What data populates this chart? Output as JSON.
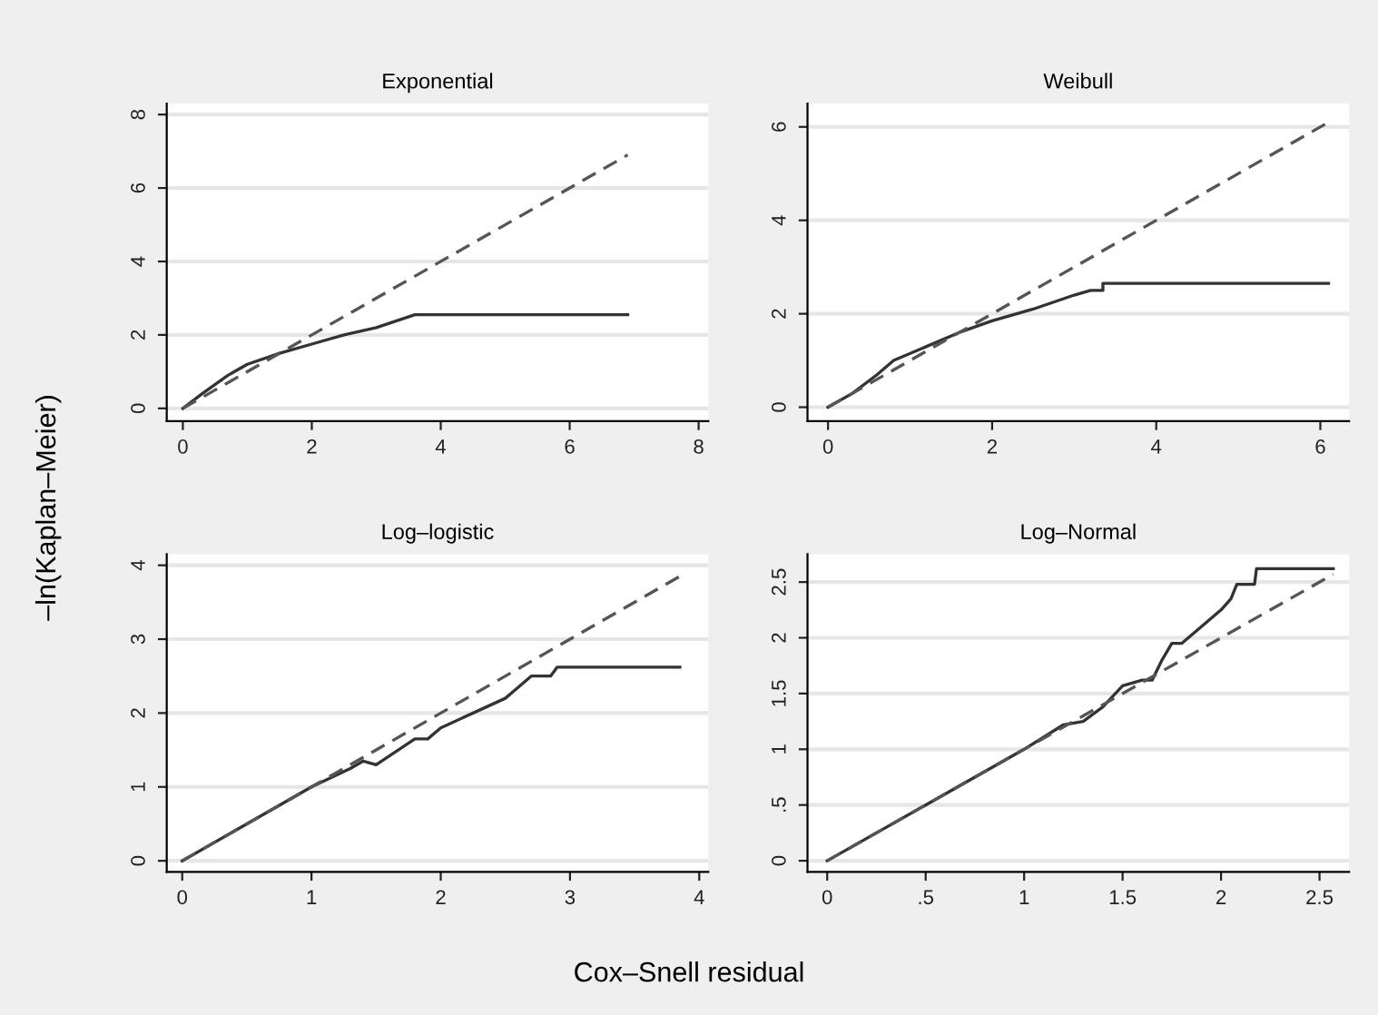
{
  "chart_data": [
    {
      "type": "line",
      "title": "Exponential",
      "ylabel": "–ln(Kaplan–Meier)",
      "xlim": [
        -0.25,
        8.15
      ],
      "ylim": [
        -0.35,
        8.3
      ],
      "xticks": [
        0,
        2,
        4,
        6,
        8
      ],
      "yticks": [
        0,
        2,
        4,
        6,
        8
      ],
      "grid": "y",
      "series": [
        {
          "color": "#333333",
          "line_style": "solid",
          "x": [
            0,
            0.3,
            0.7,
            1.0,
            1.5,
            2,
            2.5,
            3,
            3.6,
            6.9
          ],
          "values": [
            0,
            0.4,
            0.9,
            1.2,
            1.5,
            1.75,
            2.0,
            2.2,
            2.55,
            2.55
          ]
        },
        {
          "color": "#555555",
          "line_style": "dashed",
          "x": [
            0,
            6.9
          ],
          "values": [
            0,
            6.9
          ]
        }
      ]
    },
    {
      "type": "line",
      "title": "Weibull",
      "xlim": [
        -0.25,
        6.35
      ],
      "ylim": [
        -0.3,
        6.5
      ],
      "xticks": [
        0,
        2,
        4,
        6
      ],
      "yticks": [
        0,
        2,
        4,
        6
      ],
      "grid": "y",
      "series": [
        {
          "color": "#333333",
          "line_style": "solid",
          "x": [
            0,
            0.3,
            0.6,
            0.8,
            1.2,
            1.6,
            2.0,
            2.5,
            3.0,
            3.2,
            3.35,
            3.35,
            6.1
          ],
          "values": [
            0,
            0.3,
            0.7,
            1.0,
            1.3,
            1.6,
            1.85,
            2.1,
            2.4,
            2.5,
            2.5,
            2.65,
            2.65
          ]
        },
        {
          "color": "#555555",
          "line_style": "dashed",
          "x": [
            0,
            6.1
          ],
          "values": [
            0,
            6.1
          ]
        }
      ]
    },
    {
      "type": "line",
      "title": "Log–logistic",
      "xlabel": "Cox–Snell residual",
      "xlim": [
        -0.12,
        4.07
      ],
      "ylim": [
        -0.15,
        4.15
      ],
      "xticks": [
        0,
        1,
        2,
        3,
        4
      ],
      "yticks": [
        0,
        1,
        2,
        3,
        4
      ],
      "grid": "y",
      "series": [
        {
          "color": "#333333",
          "line_style": "solid",
          "x": [
            0,
            0.5,
            1.0,
            1.3,
            1.4,
            1.5,
            1.8,
            1.9,
            2.0,
            2.5,
            2.6,
            2.7,
            2.85,
            2.9,
            3.85
          ],
          "values": [
            0,
            0.5,
            1.0,
            1.25,
            1.35,
            1.3,
            1.65,
            1.65,
            1.8,
            2.2,
            2.35,
            2.5,
            2.5,
            2.62,
            2.62
          ]
        },
        {
          "color": "#555555",
          "line_style": "dashed",
          "x": [
            0,
            3.85
          ],
          "values": [
            0,
            3.85
          ]
        }
      ]
    },
    {
      "type": "line",
      "title": "Log–Normal",
      "xlim": [
        -0.1,
        2.65
      ],
      "ylim": [
        -0.1,
        2.75
      ],
      "xticks": [
        0,
        {
          "value": 0.5,
          "label": ".5"
        },
        1,
        1.5,
        2,
        2.5
      ],
      "yticks": [
        0,
        {
          "value": 0.5,
          "label": ".5"
        },
        1,
        1.5,
        2,
        2.5
      ],
      "grid": "y",
      "series": [
        {
          "color": "#333333",
          "line_style": "solid",
          "x": [
            0,
            0.5,
            1.0,
            1.2,
            1.3,
            1.4,
            1.5,
            1.6,
            1.65,
            1.7,
            1.75,
            1.8,
            1.9,
            2.0,
            2.05,
            2.08,
            2.17,
            2.18,
            2.57
          ],
          "values": [
            0,
            0.5,
            1.0,
            1.22,
            1.25,
            1.38,
            1.57,
            1.62,
            1.62,
            1.8,
            1.95,
            1.95,
            2.1,
            2.25,
            2.35,
            2.48,
            2.48,
            2.62,
            2.62
          ]
        },
        {
          "color": "#555555",
          "line_style": "dashed",
          "x": [
            0,
            2.57
          ],
          "values": [
            0,
            2.57
          ]
        }
      ]
    }
  ]
}
